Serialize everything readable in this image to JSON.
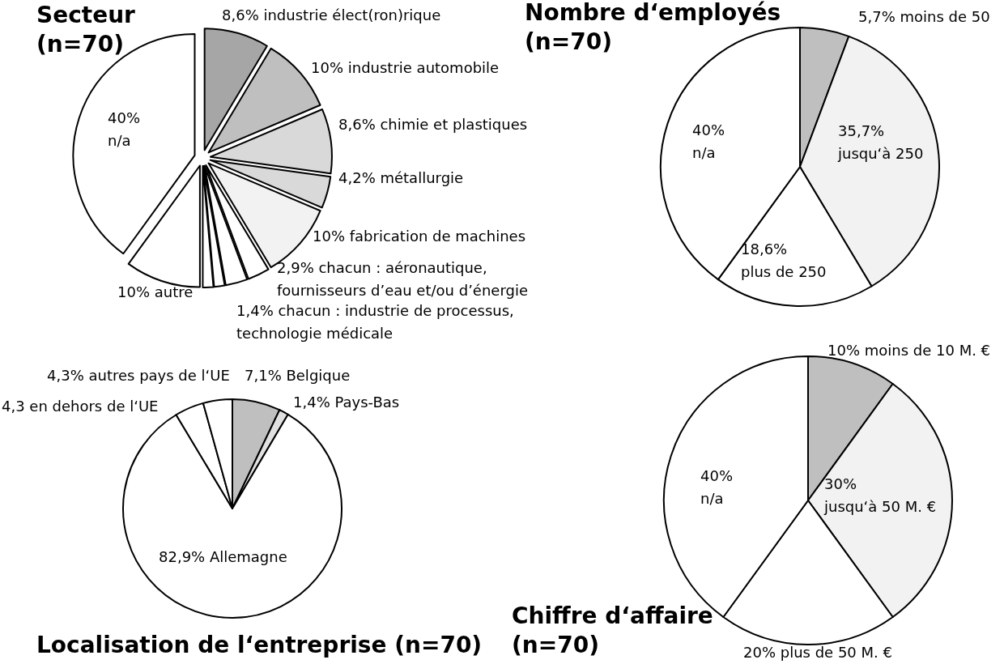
{
  "chart_data": [
    {
      "type": "pie",
      "title": "Secteur (n=70)",
      "categories": [
        "industrie élect(ron)rique",
        "industrie automobile",
        "chimie et plastiques",
        "métallurgie",
        "fabrication de machines",
        "chacun : aéronautique, fournisseurs d’eau et/ou d’énergie",
        null,
        "chacun : industrie de processus, technologie médicale",
        null,
        "autre",
        "n/a"
      ],
      "values": [
        8.6,
        10,
        8.6,
        4.2,
        10,
        2.9,
        2.9,
        1.4,
        1.4,
        10,
        40
      ],
      "value_labels": [
        "8,6%",
        "10%",
        "8,6%",
        "4,2%",
        "10%",
        "2,9%",
        null,
        "1,4%",
        null,
        "10%",
        "40%"
      ],
      "colors": [
        "#a6a6a6",
        "#bfbfbf",
        "#d9d9d9",
        "#d9d9d9",
        "#f2f2f2",
        "#ffffff",
        "#ffffff",
        "#ffffff",
        "#ffffff",
        "#ffffff",
        "#ffffff"
      ]
    },
    {
      "type": "pie",
      "title": "Nombre d‘employés (n=70)",
      "categories": [
        "moins de 50",
        "jusqu‘à 250",
        "plus de 250",
        "n/a"
      ],
      "values": [
        5.7,
        35.7,
        18.6,
        40
      ],
      "value_labels": [
        "5,7%",
        "35,7%",
        "18,6%",
        "40%"
      ],
      "colors": [
        "#bfbfbf",
        "#f2f2f2",
        "#ffffff",
        "#ffffff"
      ]
    },
    {
      "type": "pie",
      "title": "Localisation de l‘entreprise (n=70)",
      "categories": [
        "Belgique",
        "Pays-Bas",
        "Allemagne",
        "en dehors de l‘UE",
        "autres pays de l‘UE"
      ],
      "values": [
        7.1,
        1.4,
        82.9,
        4.3,
        4.3
      ],
      "value_labels": [
        "7,1%",
        "1,4%",
        "82,9%",
        "4,3",
        "4,3%"
      ],
      "colors": [
        "#bfbfbf",
        "#e0e0e0",
        "#ffffff",
        "#ffffff",
        "#ffffff"
      ]
    },
    {
      "type": "pie",
      "title": "Chiffre d‘affaire (n=70)",
      "categories": [
        "moins de 10 M. €",
        "jusqu‘à 50 M. €",
        "plus de 50 M. €",
        "n/a"
      ],
      "values": [
        10,
        30,
        20,
        40
      ],
      "value_labels": [
        "10%",
        "30%",
        "20%",
        "40%"
      ],
      "colors": [
        "#bfbfbf",
        "#f2f2f2",
        "#ffffff",
        "#ffffff"
      ]
    }
  ]
}
